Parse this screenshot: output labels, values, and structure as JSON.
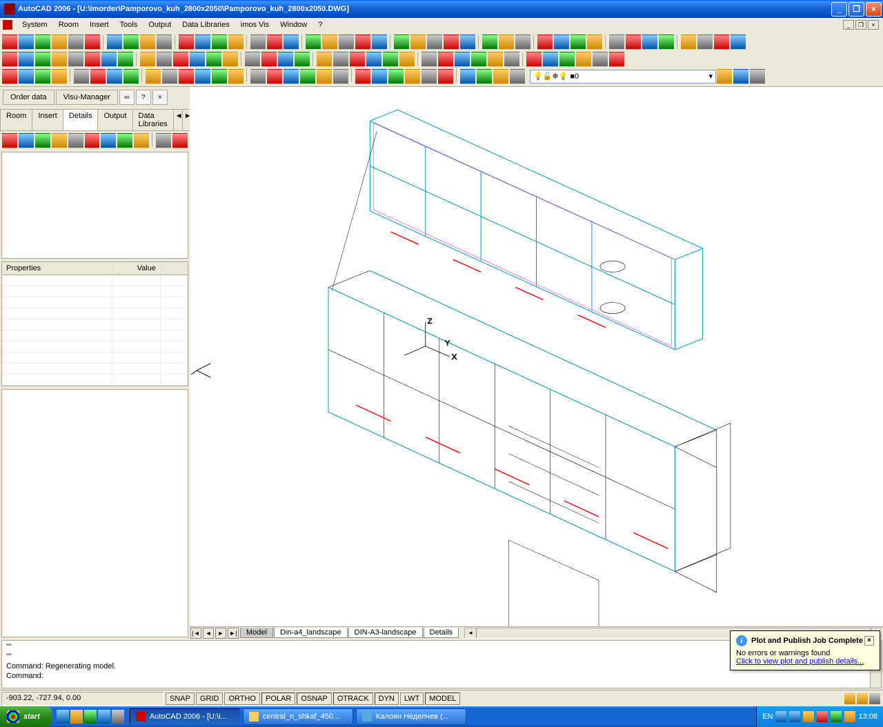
{
  "title": "AutoCAD 2006 - [U:\\imorder\\Pamporovo_kuh_2800x2050\\Pamporovo_kuh_2800x2050.DWG]",
  "menus": [
    "System",
    "Room",
    "Insert",
    "Tools",
    "Output",
    "Data Libraries",
    "imos Vis",
    "Window",
    "?"
  ],
  "left_buttons": {
    "order": "Order data",
    "visu": "Visu-Manager",
    "link": "∞",
    "help": "?",
    "close": "×"
  },
  "subtabs": [
    "Room",
    "Insert",
    "Details",
    "Output",
    "Data Libraries"
  ],
  "subtab_active": 2,
  "prop_headers": {
    "c1": "Properties",
    "c2": "Value"
  },
  "layer": {
    "indicator": "💡🔍❄💡",
    "name": "0"
  },
  "model_tabs": [
    "Model",
    "Din-a4_landscape",
    "DIN-A3-landscape",
    "Details"
  ],
  "cmd_lines": [
    "\"\"",
    "\"\"",
    "Command: Regenerating model.",
    "Command:"
  ],
  "status": {
    "coords": "-903.22, -727.94, 0.00",
    "toggles": [
      "SNAP",
      "GRID",
      "ORTHO",
      "POLAR",
      "OSNAP",
      "OTRACK",
      "DYN",
      "LWT",
      "MODEL"
    ]
  },
  "balloon": {
    "title": "Plot and Publish Job Complete",
    "msg": "No errors or warnings found",
    "link": "Click to view plot and publish details..."
  },
  "taskbar": {
    "start": "start",
    "items": [
      {
        "label": "AutoCAD 2006 - [U:\\i...",
        "active": true,
        "color": "#c00"
      },
      {
        "label": "central_n_shkaf_450...",
        "active": false,
        "color": "#fc6"
      },
      {
        "label": "Калоян Неделчев (...",
        "active": false,
        "color": "#5ad"
      }
    ],
    "lang": "EN",
    "clock": "13:08"
  }
}
